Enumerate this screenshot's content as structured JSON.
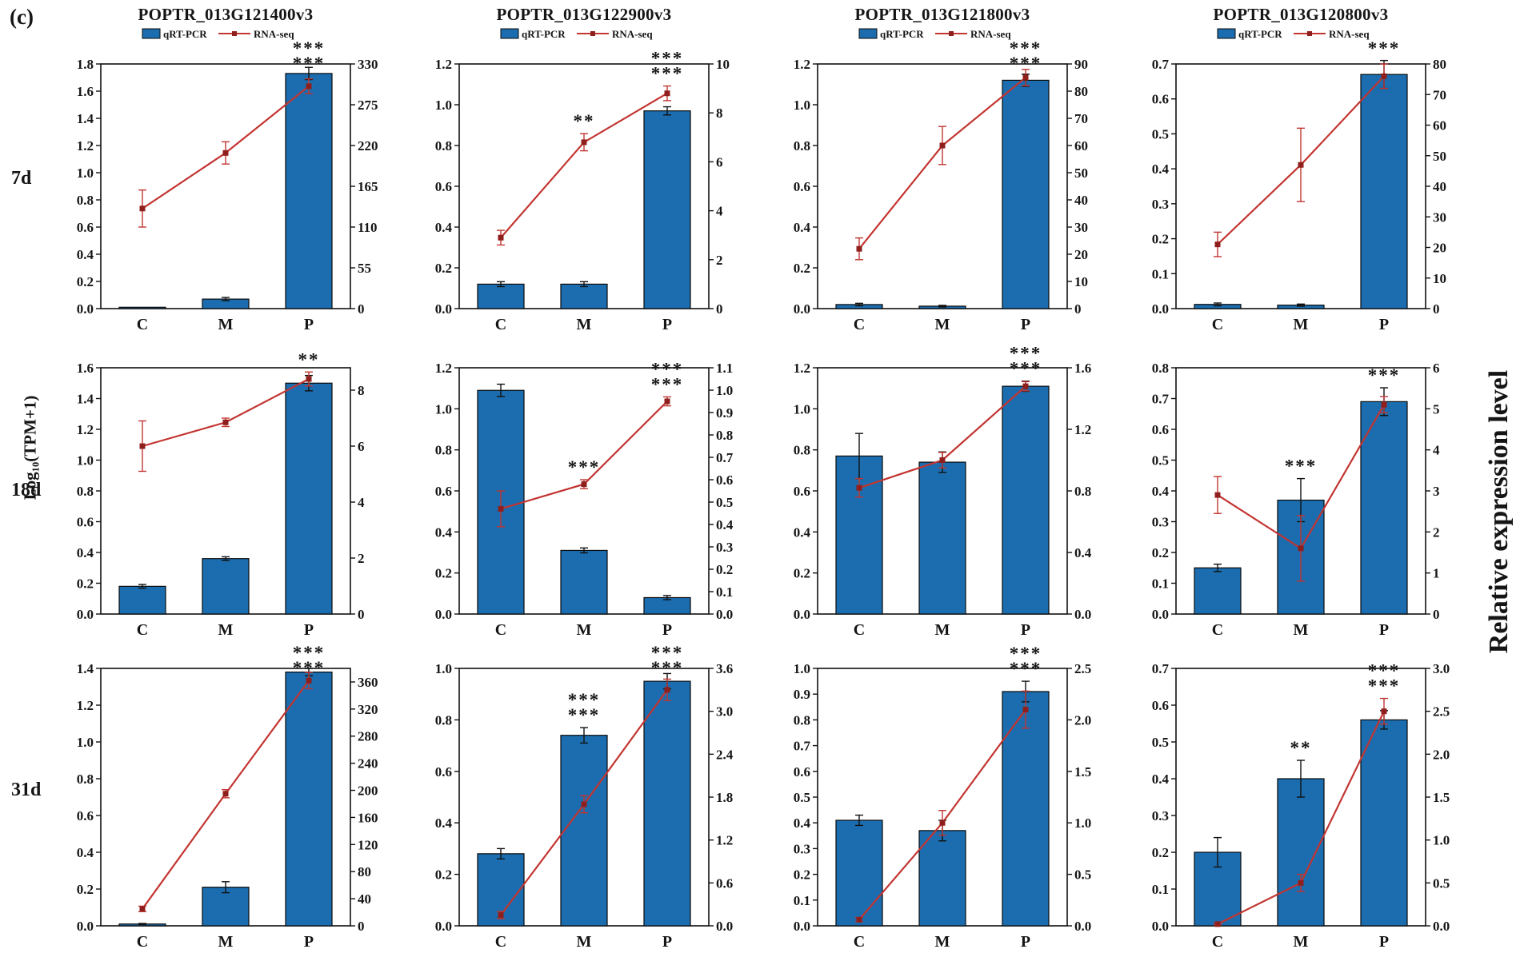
{
  "figure_label": "(c)",
  "row_labels": [
    "7d",
    "18d",
    "31d"
  ],
  "axis_labels": {
    "left": "Log₁₀(TPM+1)",
    "right": "Relative expression level"
  },
  "legend": {
    "bar_label": "qRT-PCR",
    "line_label": "RNA-seq"
  },
  "categories": [
    "C",
    "M",
    "P"
  ],
  "colors": {
    "bar": "#1b6daf",
    "line": "#c23531",
    "marker": "#8f1f1c",
    "error_bar": "#111111",
    "star_red": "#c9201d",
    "star_blue": "#2b2b9e",
    "star_pink": "#e06e6e"
  },
  "chart_data": [
    {
      "type": "bar+line",
      "title": "POPTR_013G121400v3",
      "time_point": "7d",
      "bar_series": "qRT-PCR",
      "line_series": "RNA-seq",
      "categories": [
        "C",
        "M",
        "P"
      ],
      "bar_values": [
        0.01,
        0.07,
        1.73
      ],
      "bar_errors": [
        0,
        0.012,
        0.045
      ],
      "line_values": [
        135,
        210,
        300
      ],
      "line_errors": [
        25,
        15,
        10
      ],
      "left_axis": {
        "max": 1.8,
        "step": 0.2
      },
      "right_axis": {
        "max": 330,
        "step": 55
      },
      "significance": [
        {
          "category": "P",
          "stars": [
            {
              "text": "***",
              "color": "#2b2b9e"
            },
            {
              "text": "***",
              "color": "#c9201d"
            }
          ]
        }
      ]
    },
    {
      "type": "bar+line",
      "title": "POPTR_013G122900v3",
      "time_point": "7d",
      "bar_series": "qRT-PCR",
      "line_series": "RNA-seq",
      "categories": [
        "C",
        "M",
        "P"
      ],
      "bar_values": [
        0.12,
        0.12,
        0.97
      ],
      "bar_errors": [
        0.012,
        0.012,
        0.02
      ],
      "line_values": [
        2.9,
        6.8,
        8.8
      ],
      "line_errors": [
        0.3,
        0.35,
        0.3
      ],
      "left_axis": {
        "max": 1.2,
        "step": 0.2
      },
      "right_axis": {
        "max": 10,
        "step": 2
      },
      "significance": [
        {
          "category": "M",
          "stars": [
            {
              "text": "**",
              "color": "#c9201d"
            }
          ]
        },
        {
          "category": "P",
          "stars": [
            {
              "text": "***",
              "color": "#c9201d"
            },
            {
              "text": "***",
              "color": "#2b2b9e"
            }
          ]
        }
      ]
    },
    {
      "type": "bar+line",
      "title": "POPTR_013G121800v3",
      "time_point": "7d",
      "bar_series": "qRT-PCR",
      "line_series": "RNA-seq",
      "categories": [
        "C",
        "M",
        "P"
      ],
      "bar_values": [
        0.02,
        0.012,
        1.12
      ],
      "bar_errors": [
        0.006,
        0.004,
        0.03
      ],
      "line_values": [
        22,
        60,
        85
      ],
      "line_errors": [
        4,
        7,
        3
      ],
      "left_axis": {
        "max": 1.2,
        "step": 0.2
      },
      "right_axis": {
        "max": 90,
        "step": 10
      },
      "significance": [
        {
          "category": "P",
          "stars": [
            {
              "text": "***",
              "color": "#c9201d"
            },
            {
              "text": "***",
              "color": "#2b2b9e"
            }
          ]
        }
      ]
    },
    {
      "type": "bar+line",
      "title": "POPTR_013G120800v3",
      "time_point": "7d",
      "bar_series": "qRT-PCR",
      "line_series": "RNA-seq",
      "categories": [
        "C",
        "M",
        "P"
      ],
      "bar_values": [
        0.012,
        0.01,
        0.67
      ],
      "bar_errors": [
        0.004,
        0.003,
        0.04
      ],
      "line_values": [
        21,
        47,
        76
      ],
      "line_errors": [
        4,
        12,
        4
      ],
      "left_axis": {
        "max": 0.7,
        "step": 0.1
      },
      "right_axis": {
        "max": 80,
        "step": 10
      },
      "significance": [
        {
          "category": "P",
          "stars": [
            {
              "text": "***",
              "color": "#2b2b9e"
            }
          ]
        }
      ]
    },
    {
      "type": "bar+line",
      "title": "POPTR_013G121400v3",
      "time_point": "18d",
      "bar_series": "qRT-PCR",
      "line_series": "RNA-seq",
      "categories": [
        "C",
        "M",
        "P"
      ],
      "bar_values": [
        0.18,
        0.36,
        1.5
      ],
      "bar_errors": [
        0.012,
        0.012,
        0.05
      ],
      "line_values": [
        6.0,
        6.85,
        8.4
      ],
      "line_errors": [
        0.9,
        0.15,
        0.25
      ],
      "left_axis": {
        "max": 1.6,
        "step": 0.2
      },
      "right_axis": {
        "max": 8.8,
        "step": 2
      },
      "significance": [
        {
          "category": "P",
          "stars": [
            {
              "text": "**",
              "color": "#2b2b9e"
            }
          ]
        }
      ]
    },
    {
      "type": "bar+line",
      "title": "POPTR_013G122900v3",
      "time_point": "18d",
      "bar_series": "qRT-PCR",
      "line_series": "RNA-seq",
      "categories": [
        "C",
        "M",
        "P"
      ],
      "bar_values": [
        1.09,
        0.31,
        0.08
      ],
      "bar_errors": [
        0.03,
        0.012,
        0.01
      ],
      "line_values": [
        0.47,
        0.58,
        0.95
      ],
      "line_errors": [
        0.08,
        0.02,
        0.02
      ],
      "left_axis": {
        "max": 1.2,
        "step": 0.2
      },
      "right_axis": {
        "max": 1.1,
        "step": 0.1
      },
      "significance": [
        {
          "category": "M",
          "stars": [
            {
              "text": "***",
              "color": "#e06e6e"
            }
          ]
        },
        {
          "category": "P",
          "stars": [
            {
              "text": "***",
              "color": "#c9201d"
            },
            {
              "text": "***",
              "color": "#2b2b9e"
            }
          ]
        }
      ]
    },
    {
      "type": "bar+line",
      "title": "POPTR_013G121800v3",
      "time_point": "18d",
      "bar_series": "qRT-PCR",
      "line_series": "RNA-seq",
      "categories": [
        "C",
        "M",
        "P"
      ],
      "bar_values": [
        0.77,
        0.74,
        1.11
      ],
      "bar_errors": [
        0.11,
        0.05,
        0.025
      ],
      "line_values": [
        0.82,
        1.0,
        1.48
      ],
      "line_errors": [
        0.06,
        0.05,
        0.03
      ],
      "left_axis": {
        "max": 1.2,
        "step": 0.2
      },
      "right_axis": {
        "max": 1.6,
        "step": 0.4
      },
      "significance": [
        {
          "category": "P",
          "stars": [
            {
              "text": "***",
              "color": "#2b2b9e"
            },
            {
              "text": "***",
              "color": "#c9201d"
            }
          ]
        }
      ]
    },
    {
      "type": "bar+line",
      "title": "POPTR_013G120800v3",
      "time_point": "18d",
      "bar_series": "qRT-PCR",
      "line_series": "RNA-seq",
      "categories": [
        "C",
        "M",
        "P"
      ],
      "bar_values": [
        0.15,
        0.37,
        0.69
      ],
      "bar_errors": [
        0.012,
        0.07,
        0.045
      ],
      "line_values": [
        2.9,
        1.6,
        5.1
      ],
      "line_errors": [
        0.45,
        0.8,
        0.2
      ],
      "left_axis": {
        "max": 0.8,
        "step": 0.1
      },
      "right_axis": {
        "max": 6,
        "step": 1
      },
      "significance": [
        {
          "category": "M",
          "stars": [
            {
              "text": "***",
              "color": "#2b2b9e"
            }
          ]
        },
        {
          "category": "P",
          "stars": [
            {
              "text": "***",
              "color": "#2b2b9e"
            }
          ]
        }
      ]
    },
    {
      "type": "bar+line",
      "title": "POPTR_013G121400v3",
      "time_point": "31d",
      "bar_series": "qRT-PCR",
      "line_series": "RNA-seq",
      "categories": [
        "C",
        "M",
        "P"
      ],
      "bar_values": [
        0.01,
        0.21,
        1.38
      ],
      "bar_errors": [
        0.003,
        0.03,
        0.02
      ],
      "line_values": [
        25,
        195,
        362
      ],
      "line_errors": [
        4,
        6,
        12
      ],
      "left_axis": {
        "max": 1.4,
        "step": 0.2
      },
      "right_axis": {
        "max": 380,
        "step": 40
      },
      "significance": [
        {
          "category": "P",
          "stars": [
            {
              "text": "***",
              "color": "#c9201d"
            },
            {
              "text": "***",
              "color": "#2b2b9e"
            }
          ]
        }
      ]
    },
    {
      "type": "bar+line",
      "title": "POPTR_013G122900v3",
      "time_point": "31d",
      "bar_series": "qRT-PCR",
      "line_series": "RNA-seq",
      "categories": [
        "C",
        "M",
        "P"
      ],
      "bar_values": [
        0.28,
        0.74,
        0.95
      ],
      "bar_errors": [
        0.02,
        0.03,
        0.03
      ],
      "line_values": [
        0.15,
        1.7,
        3.3
      ],
      "line_errors": [
        0.05,
        0.12,
        0.15
      ],
      "left_axis": {
        "max": 1.0,
        "step": 0.2
      },
      "right_axis": {
        "max": 3.6,
        "step": 0.6
      },
      "significance": [
        {
          "category": "M",
          "stars": [
            {
              "text": "***",
              "color": "#2b2b9e"
            },
            {
              "text": "***",
              "color": "#e06e6e"
            }
          ]
        },
        {
          "category": "P",
          "stars": [
            {
              "text": "***",
              "color": "#2b2b9e"
            },
            {
              "text": "***",
              "color": "#c9201d"
            }
          ]
        }
      ]
    },
    {
      "type": "bar+line",
      "title": "POPTR_013G121800v3",
      "time_point": "31d",
      "bar_series": "qRT-PCR",
      "line_series": "RNA-seq",
      "categories": [
        "C",
        "M",
        "P"
      ],
      "bar_values": [
        0.41,
        0.37,
        0.91
      ],
      "bar_errors": [
        0.02,
        0.04,
        0.04
      ],
      "line_values": [
        0.06,
        1.0,
        2.1
      ],
      "line_errors": [
        0.02,
        0.12,
        0.18
      ],
      "left_axis": {
        "max": 1.0,
        "step": 0.1
      },
      "right_axis": {
        "max": 2.5,
        "step": 0.5
      },
      "significance": [
        {
          "category": "P",
          "stars": [
            {
              "text": "***",
              "color": "#2b2b9e"
            },
            {
              "text": "***",
              "color": "#c9201d"
            }
          ]
        }
      ]
    },
    {
      "type": "bar+line",
      "title": "POPTR_013G120800v3",
      "time_point": "31d",
      "bar_series": "qRT-PCR",
      "line_series": "RNA-seq",
      "categories": [
        "C",
        "M",
        "P"
      ],
      "bar_values": [
        0.2,
        0.4,
        0.56
      ],
      "bar_errors": [
        0.04,
        0.05,
        0.025
      ],
      "line_values": [
        0.02,
        0.5,
        2.5
      ],
      "line_errors": [
        0.01,
        0.1,
        0.15
      ],
      "left_axis": {
        "max": 0.7,
        "step": 0.1
      },
      "right_axis": {
        "max": 3.0,
        "step": 0.5
      },
      "significance": [
        {
          "category": "M",
          "stars": [
            {
              "text": "**",
              "color": "#2b2b9e"
            }
          ]
        },
        {
          "category": "P",
          "stars": [
            {
              "text": "***",
              "color": "#c9201d"
            },
            {
              "text": "***",
              "color": "#2b2b9e"
            }
          ]
        }
      ]
    }
  ]
}
